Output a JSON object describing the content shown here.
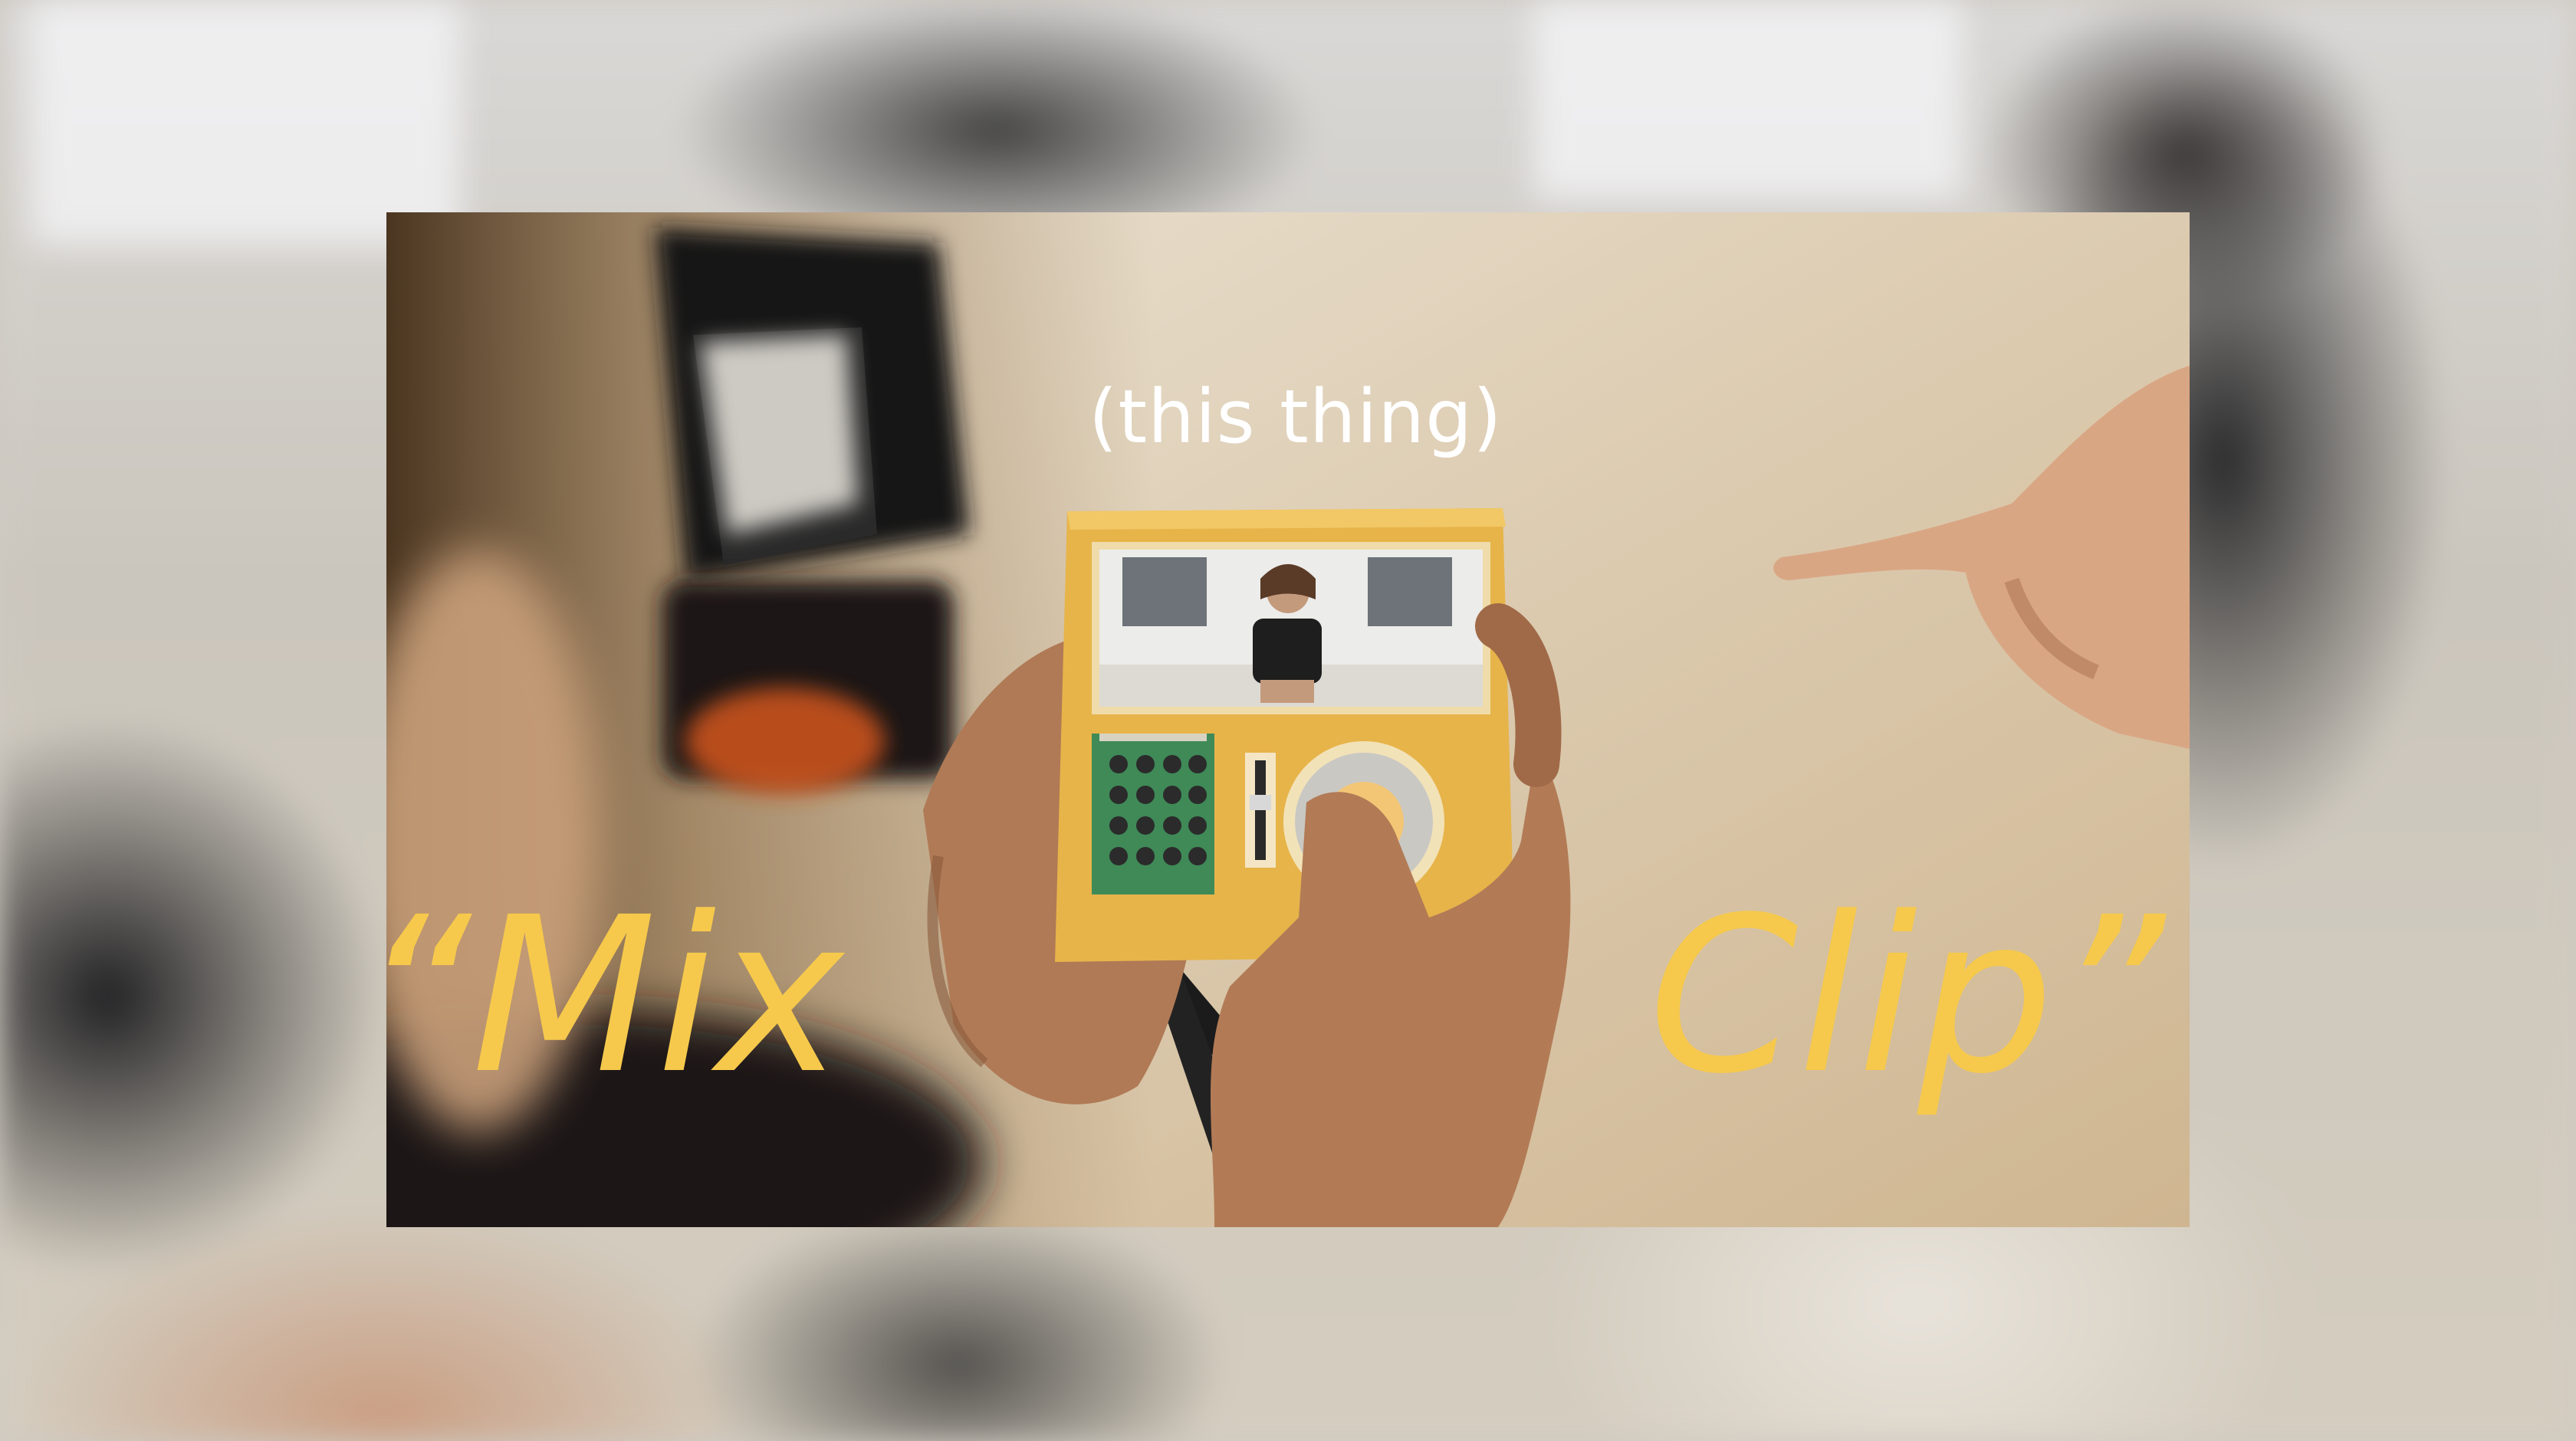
{
  "captions": {
    "subtitle": "(this thing)",
    "word_left": "“Mix",
    "word_right": "Clip”"
  },
  "colors": {
    "caption_yellow": "#f6c94c",
    "caption_white": "#ffffff",
    "device_body": "#e7b44a",
    "circuit_board": "#3f8a57"
  }
}
